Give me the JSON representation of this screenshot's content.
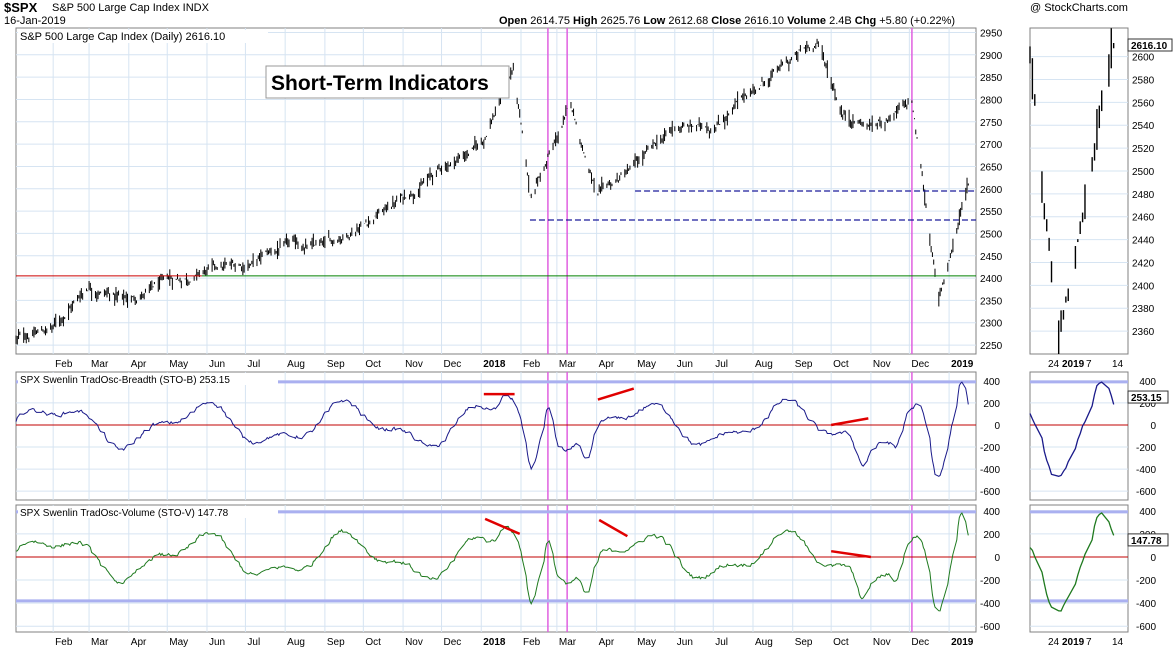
{
  "header": {
    "ticker": "$SPX",
    "name": "S&P 500 Large Cap Index INDX",
    "date": "16-Jan-2019",
    "ohlc": {
      "open_label": "Open",
      "open": "2614.75",
      "high_label": "High",
      "high": "2625.76",
      "low_label": "Low",
      "low": "2612.68",
      "close_label": "Close",
      "close": "2616.10",
      "volume_label": "Volume",
      "volume": "2.4B",
      "chg_label": "Chg",
      "chg": "+5.80 (+0.22%)"
    },
    "credit": "@ StockCharts.com"
  },
  "annotation": "Short-Term Indicators",
  "colors": {
    "price": "#000000",
    "breadth": "#1a1a8a",
    "volume": "#1f7a1f",
    "zero_line": "#c00000",
    "band": "#aab0f0",
    "support": "#1a1a9a",
    "resistance_red": "#cc0000",
    "resistance_green": "#008000",
    "marker": "#e060e0",
    "divergence": "#e00000",
    "grid": "#d6e4f2"
  },
  "chart_data": [
    {
      "type": "ohlc",
      "title": "S&P 500 Large Cap Index (Daily) 2616.10",
      "last_value": "2616.10",
      "ylim": [
        2230,
        2960
      ],
      "y_ticks": [
        2250,
        2300,
        2350,
        2400,
        2450,
        2500,
        2550,
        2600,
        2650,
        2700,
        2750,
        2800,
        2850,
        2900,
        2950
      ],
      "x_ticks": [
        "Feb",
        "Mar",
        "Apr",
        "May",
        "Jun",
        "Jul",
        "Aug",
        "Sep",
        "Oct",
        "Nov",
        "Dec",
        "2018",
        "Feb",
        "Mar",
        "Apr",
        "May",
        "Jun",
        "Jul",
        "Aug",
        "Sep",
        "Oct",
        "Nov",
        "Dec",
        "2019"
      ],
      "approx_closes_by_month": [
        [
          "2017-01-01",
          2260
        ],
        [
          "2017-02-01",
          2290
        ],
        [
          "2017-03-01",
          2385
        ],
        [
          "2017-04-01",
          2350
        ],
        [
          "2017-05-01",
          2390
        ],
        [
          "2017-06-01",
          2415
        ],
        [
          "2017-07-01",
          2430
        ],
        [
          "2017-08-01",
          2470
        ],
        [
          "2017-09-01",
          2470
        ],
        [
          "2017-10-01",
          2525
        ],
        [
          "2017-11-01",
          2580
        ],
        [
          "2017-12-01",
          2645
        ],
        [
          "2018-01-01",
          2700
        ],
        [
          "2018-01-26",
          2870
        ],
        [
          "2018-02-08",
          2580
        ],
        [
          "2018-03-01",
          2710
        ],
        [
          "2018-03-12",
          2785
        ],
        [
          "2018-04-02",
          2580
        ],
        [
          "2018-05-01",
          2650
        ],
        [
          "2018-06-01",
          2735
        ],
        [
          "2018-07-01",
          2740
        ],
        [
          "2018-08-01",
          2820
        ],
        [
          "2018-09-20",
          2930
        ],
        [
          "2018-10-10",
          2770
        ],
        [
          "2018-11-01",
          2740
        ],
        [
          "2018-12-03",
          2790
        ],
        [
          "2018-12-24",
          2350
        ],
        [
          "2019-01-16",
          2616
        ]
      ],
      "horizontal_lines": [
        2400,
        2595,
        2530
      ]
    },
    {
      "type": "line",
      "title": "SPX Swenlin TradOsc-Breadth (STO-B) 253.15",
      "last_value": "253.15",
      "ylim": [
        -680,
        480
      ],
      "y_ticks": [
        400,
        200,
        0,
        -200,
        -400,
        -600
      ],
      "band": [
        390
      ]
    },
    {
      "type": "line",
      "title": "SPX Swenlin TradOsc-Volume (STO-V) 147.78",
      "last_value": "147.78",
      "ylim": [
        -650,
        450
      ],
      "y_ticks": [
        400,
        200,
        0,
        -200,
        -400,
        -600
      ],
      "band": [
        390,
        -380
      ]
    }
  ],
  "side_panel": {
    "x_ticks": [
      "24",
      "2019",
      "7",
      "14"
    ],
    "price_ticks": [
      2600,
      2580,
      2560,
      2540,
      2520,
      2500,
      2480,
      2460,
      2440,
      2420,
      2400,
      2380,
      2360
    ],
    "price_last": "2616.10",
    "breadth_last": "253.15",
    "volume_last": "147.78"
  }
}
